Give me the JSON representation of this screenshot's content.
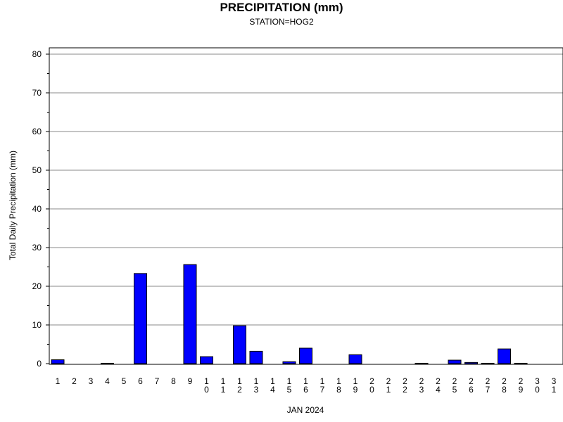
{
  "chart_data": {
    "type": "bar",
    "title": "PRECIPITATION (mm)",
    "subtitle": "STATION=HOG2",
    "xlabel": "JAN 2024",
    "ylabel": "Total Daily Precipitation (mm)",
    "ylim": [
      0,
      80
    ],
    "yticks": [
      0,
      10,
      20,
      30,
      40,
      50,
      60,
      70,
      80
    ],
    "grid": true,
    "categories": [
      "1",
      "2",
      "3",
      "4",
      "5",
      "6",
      "7",
      "8",
      "9",
      "10",
      "11",
      "12",
      "13",
      "14",
      "15",
      "16",
      "17",
      "18",
      "19",
      "20",
      "21",
      "22",
      "23",
      "24",
      "25",
      "26",
      "27",
      "28",
      "29",
      "30",
      "31"
    ],
    "values": [
      1.0,
      0,
      0,
      0.1,
      0,
      23.3,
      0,
      0,
      25.6,
      1.8,
      0,
      9.8,
      3.2,
      0,
      0.5,
      4.0,
      0,
      0,
      2.3,
      0,
      0,
      0,
      0.1,
      0,
      0.9,
      0.3,
      0.1,
      3.8,
      0.1,
      0,
      0
    ],
    "bar_color": "#0000ff"
  }
}
